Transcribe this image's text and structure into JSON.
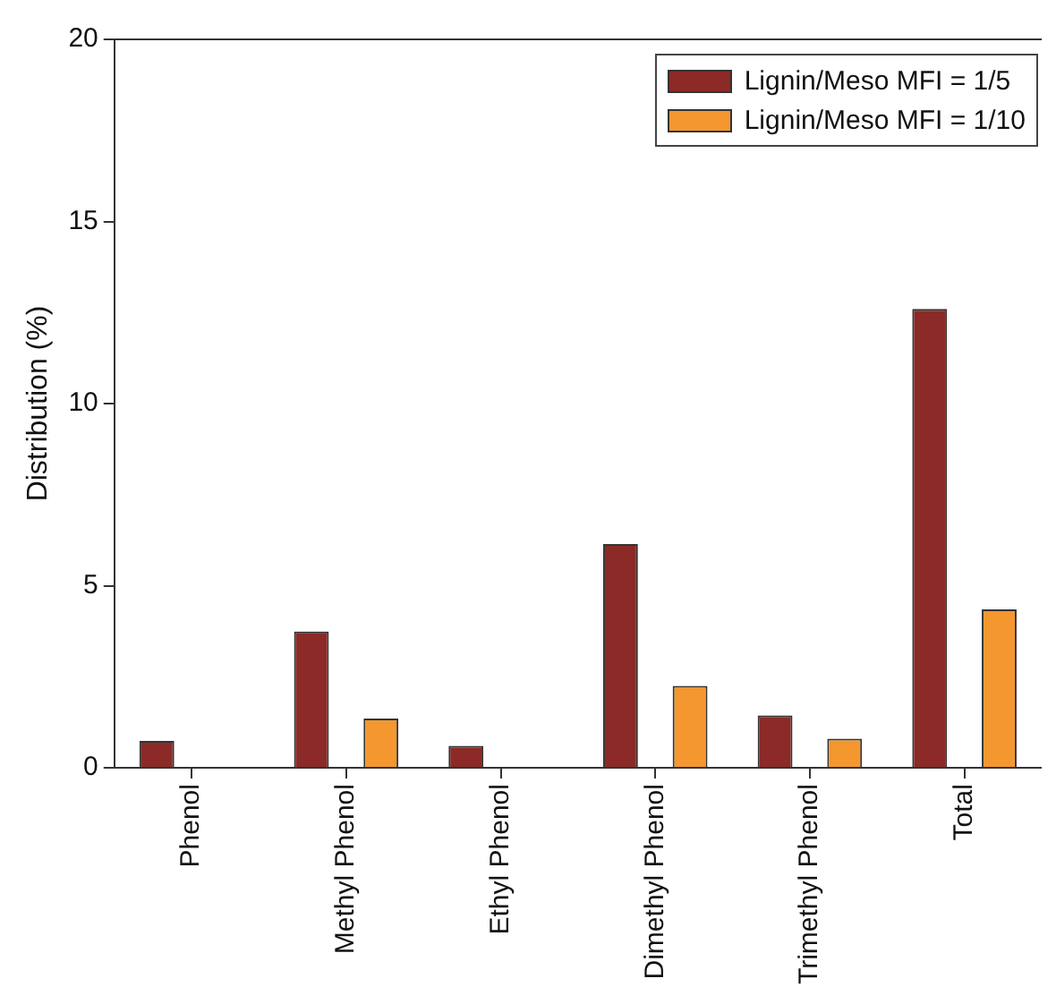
{
  "chart_data": {
    "type": "bar",
    "ylabel": "Distribution (%)",
    "categories": [
      "Phenol",
      "Methyl Phenol",
      "Ethyl Phenol",
      "Dimethyl Phenol",
      "Trimethyl Phenol",
      "Total"
    ],
    "series": [
      {
        "name": "Lignin/Meso MFI = 1/5",
        "color": "#8b2a26",
        "values": [
          0.74,
          3.74,
          0.6,
          6.14,
          1.44,
          12.6
        ]
      },
      {
        "name": "Lignin/Meso MFI = 1/10",
        "color": "#f4972f",
        "values": [
          null,
          1.35,
          null,
          2.25,
          0.8,
          4.35
        ]
      }
    ],
    "ylim": [
      0,
      20
    ],
    "yticks": [
      0,
      5,
      10,
      15,
      20
    ],
    "legend": "top right"
  }
}
